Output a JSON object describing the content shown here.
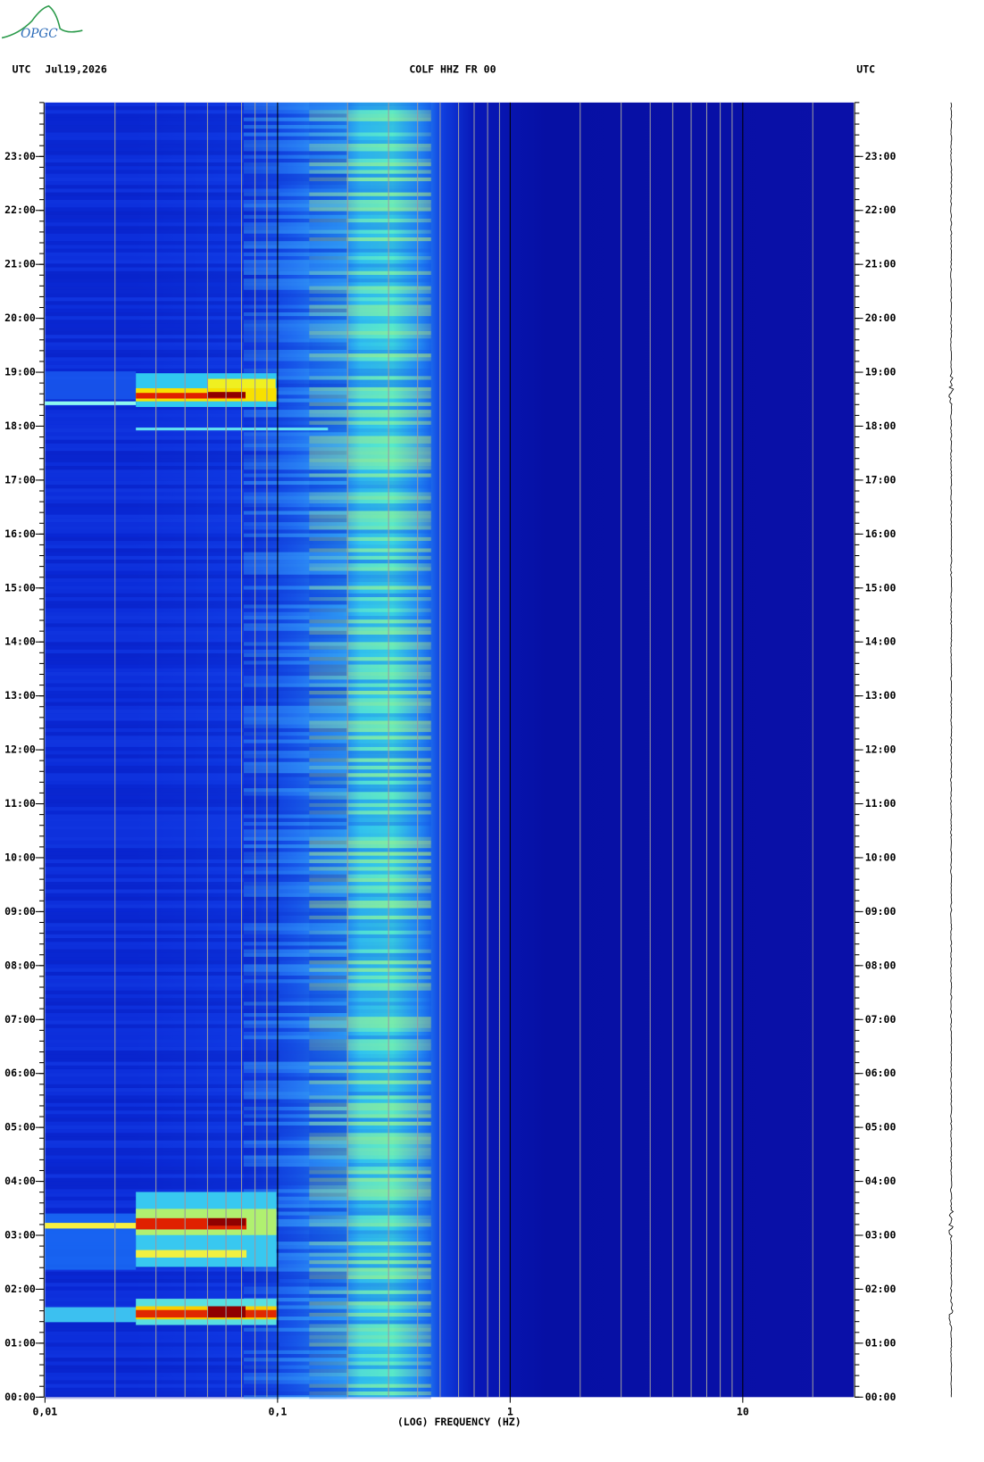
{
  "logo": "OPGC",
  "chart_data": {
    "type": "spectrogram",
    "title": "COLF HHZ FR 00",
    "date": "Jul19,2026",
    "y_label_left": "UTC",
    "y_label_right": "UTC",
    "x_label": "(LOG) FREQUENCY (HZ)",
    "x_scale": "log",
    "xlim": [
      0.01,
      30
    ],
    "xticks": [
      {
        "value": 0.01,
        "label": "0,01"
      },
      {
        "value": 0.1,
        "label": "0,1"
      },
      1,
      10
    ],
    "ylim": [
      0,
      24
    ],
    "yticks": [
      {
        "value": 0,
        "label": "00:00"
      },
      {
        "value": 1,
        "label": "01:00"
      },
      {
        "value": 2,
        "label": "02:00"
      },
      {
        "value": 3,
        "label": "03:00"
      },
      {
        "value": 4,
        "label": "04:00"
      },
      {
        "value": 5,
        "label": "05:00"
      },
      {
        "value": 6,
        "label": "06:00"
      },
      {
        "value": 7,
        "label": "07:00"
      },
      {
        "value": 8,
        "label": "08:00"
      },
      {
        "value": 9,
        "label": "09:00"
      },
      {
        "value": 10,
        "label": "10:00"
      },
      {
        "value": 11,
        "label": "11:00"
      },
      {
        "value": 12,
        "label": "12:00"
      },
      {
        "value": 13,
        "label": "13:00"
      },
      {
        "value": 14,
        "label": "14:00"
      },
      {
        "value": 15,
        "label": "15:00"
      },
      {
        "value": 16,
        "label": "16:00"
      },
      {
        "value": 17,
        "label": "17:00"
      },
      {
        "value": 18,
        "label": "18:00"
      },
      {
        "value": 19,
        "label": "19:00"
      },
      {
        "value": 20,
        "label": "20:00"
      },
      {
        "value": 21,
        "label": "21:00"
      },
      {
        "value": 22,
        "label": "22:00"
      },
      {
        "value": 23,
        "label": "23:00"
      }
    ]
  }
}
